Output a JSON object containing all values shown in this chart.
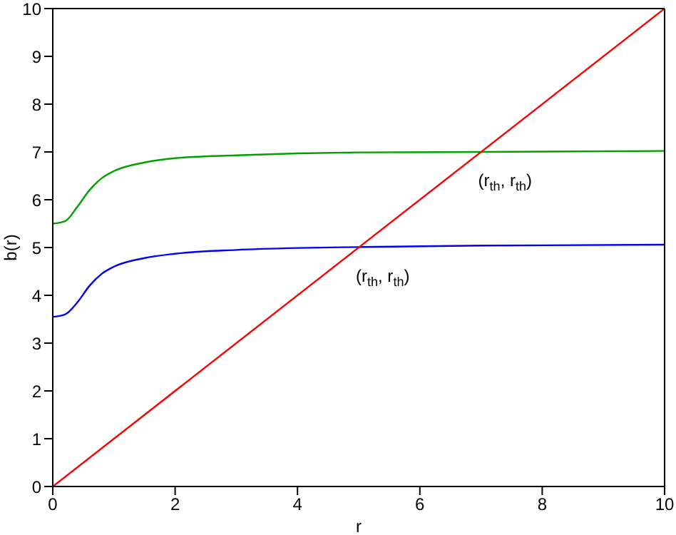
{
  "chart_data": {
    "type": "line",
    "xlabel": "r",
    "ylabel": "b(r)",
    "xlim": [
      0,
      10
    ],
    "ylim": [
      0,
      10
    ],
    "xticks": [
      0,
      2,
      4,
      6,
      8,
      10
    ],
    "yticks": [
      0,
      1,
      2,
      3,
      4,
      5,
      6,
      7,
      8,
      9,
      10
    ],
    "marker": "none",
    "line_style": "solid",
    "series": [
      {
        "color": "#00a000",
        "x": [
          0,
          0.2,
          0.4,
          0.6,
          0.8,
          1,
          1.5,
          2,
          3,
          4,
          5,
          7,
          10
        ],
        "values": [
          5.5,
          5.55,
          5.85,
          6.2,
          6.45,
          6.6,
          6.78,
          6.87,
          6.93,
          6.97,
          6.99,
          7.0,
          7.02
        ]
      },
      {
        "color": "#0000ff",
        "x": [
          0,
          0.2,
          0.4,
          0.6,
          0.8,
          1,
          1.5,
          2,
          3,
          4,
          5,
          7,
          10
        ],
        "values": [
          3.55,
          3.6,
          3.85,
          4.2,
          4.45,
          4.6,
          4.78,
          4.87,
          4.95,
          4.99,
          5.01,
          5.04,
          5.06
        ]
      },
      {
        "color": "#ff0000",
        "x": [
          0,
          10
        ],
        "values": [
          0,
          10
        ]
      }
    ],
    "annotations": [
      {
        "text": "(r$_{th}$, r$_{th}$)",
        "x": 7,
        "y": 7
      },
      {
        "text": "(r$_{th}$, r$_{th}$)",
        "x": 5,
        "y": 5
      }
    ]
  }
}
